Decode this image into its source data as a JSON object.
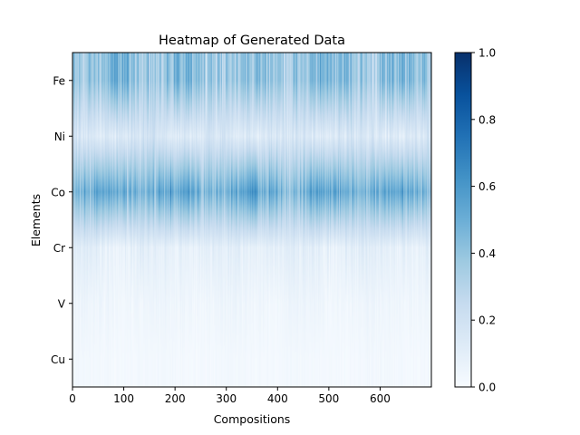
{
  "chart_data": {
    "type": "heatmap",
    "title": "Heatmap of Generated Data",
    "xlabel": "Compositions",
    "ylabel": "Elements",
    "xlim": [
      0,
      700
    ],
    "x_ticks": [
      0,
      100,
      200,
      300,
      400,
      500,
      600
    ],
    "y_categories": [
      "Fe",
      "Ni",
      "Co",
      "Cr",
      "V",
      "Cu"
    ],
    "value_range": [
      0.0,
      1.0
    ],
    "colormap": "Blues",
    "colorbar_ticks": [
      "0.0",
      "0.2",
      "0.4",
      "0.6",
      "0.8",
      "1.0"
    ],
    "row_profile": [
      {
        "element": "Fe",
        "mean": 0.4,
        "spread": 0.18
      },
      {
        "element": "Ni",
        "mean": 0.14,
        "spread": 0.08
      },
      {
        "element": "Co",
        "mean": 0.5,
        "spread": 0.16
      },
      {
        "element": "Cr",
        "mean": 0.09,
        "spread": 0.06
      },
      {
        "element": "V",
        "mean": 0.04,
        "spread": 0.03
      },
      {
        "element": "Cu",
        "mean": 0.02,
        "spread": 0.015
      }
    ],
    "colors": {
      "low": "#f7fbff",
      "high": "#08306b",
      "axis": "#000000"
    }
  }
}
